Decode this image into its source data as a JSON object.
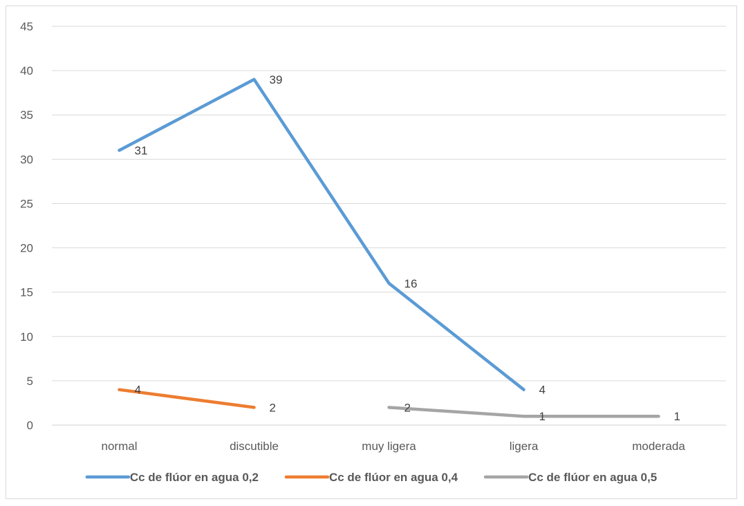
{
  "chart_data": {
    "type": "line",
    "title": "",
    "xlabel": "",
    "ylabel": "",
    "categories": [
      "normal",
      "discutible",
      "muy ligera",
      "ligera",
      "moderada"
    ],
    "ylim": [
      0,
      45
    ],
    "yticks": [
      0,
      5,
      10,
      15,
      20,
      25,
      30,
      35,
      40,
      45
    ],
    "grid": true,
    "legend_position": "bottom",
    "series": [
      {
        "name": "Cc de flúor en agua 0,2",
        "color": "#5b9bd5",
        "values": [
          31,
          39,
          16,
          4,
          null
        ]
      },
      {
        "name": "Cc de flúor en agua 0,4",
        "color": "#ed7d31",
        "values": [
          4,
          2,
          null,
          null,
          null
        ]
      },
      {
        "name": "Cc de flúor en agua 0,5",
        "color": "#a5a5a5",
        "values": [
          null,
          null,
          2,
          1,
          1
        ]
      }
    ]
  }
}
